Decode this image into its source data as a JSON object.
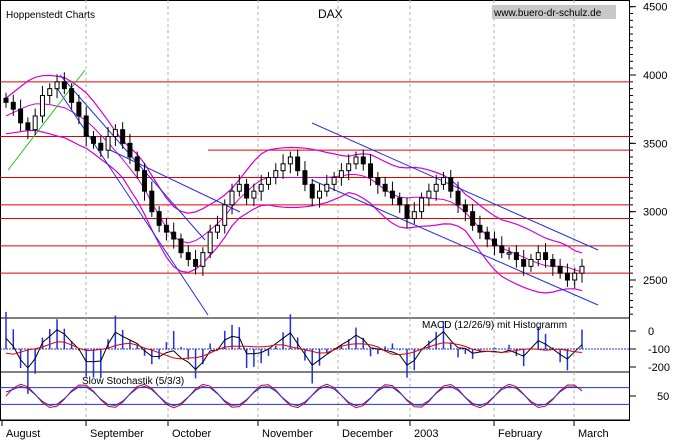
{
  "header": {
    "left": "Hoppenstedt Charts",
    "center": "DAX",
    "right": "www.buero-dr-schulz.de"
  },
  "chart_data": {
    "type": "candlestick",
    "title": "DAX",
    "price_axis": {
      "ticks": [
        "4500",
        "4000",
        "3500",
        "3000",
        "2500"
      ],
      "ylim": [
        2250,
        4650
      ]
    },
    "months": [
      "August",
      "September",
      "October",
      "November",
      "December",
      "2003",
      "February",
      "March"
    ],
    "horizontal_levels": [
      3950,
      3550,
      3450,
      3250,
      3050,
      2950,
      2750,
      2550
    ],
    "closes": [
      3800,
      3750,
      3650,
      3600,
      3700,
      3850,
      3900,
      3950,
      3900,
      3800,
      3700,
      3550,
      3500,
      3450,
      3550,
      3600,
      3500,
      3400,
      3300,
      3150,
      3000,
      2900,
      2850,
      2800,
      2700,
      2650,
      2600,
      2700,
      2850,
      2900,
      3050,
      3150,
      3200,
      3100,
      3150,
      3200,
      3250,
      3300,
      3350,
      3400,
      3300,
      3200,
      3100,
      3150,
      3200,
      3250,
      3300,
      3350,
      3400,
      3350,
      3250,
      3200,
      3150,
      3100,
      3050,
      2950,
      3000,
      3100,
      3150,
      3200,
      3250,
      3150,
      3050,
      3000,
      2900,
      2850,
      2800,
      2750,
      2700,
      2700,
      2650,
      2600,
      2650,
      2700,
      2650,
      2600,
      2550,
      2500,
      2550,
      2600
    ],
    "bollinger_bands": true,
    "trend_channels": true,
    "macd": {
      "label": "MACD (12/26/9) mit Histogramm",
      "ticks": [
        "0",
        "-100",
        "-200"
      ],
      "ylim": [
        -250,
        50
      ]
    },
    "stochastic": {
      "label": "Slow Stochastik (5/3/3)",
      "ticks": [
        "50"
      ],
      "levels": [
        80,
        20
      ]
    }
  }
}
